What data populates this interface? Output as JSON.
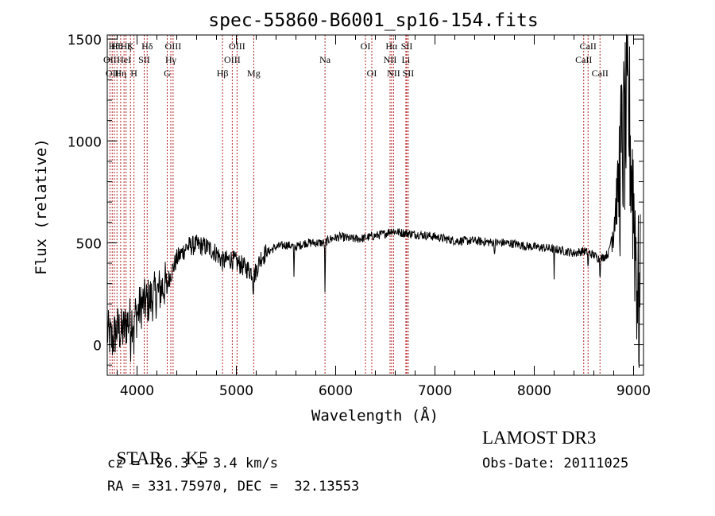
{
  "chart_data": {
    "type": "line",
    "title": "spec-55860-B6001_sp16-154.fits",
    "xlabel": "Wavelength (Å)",
    "ylabel": "Flux (relative)",
    "xlim": [
      3700,
      9100
    ],
    "ylim": [
      -150,
      1520
    ],
    "x_ticks": [
      4000,
      5000,
      6000,
      7000,
      8000,
      9000
    ],
    "y_ticks": [
      0,
      500,
      1000,
      1500
    ],
    "grid": false,
    "legend": "none",
    "line_color": "#000000",
    "marker_color": "#b22222",
    "spectrum_keypoints": {
      "x": [
        3700,
        3750,
        3800,
        3850,
        3900,
        3950,
        4000,
        4050,
        4100,
        4150,
        4200,
        4250,
        4300,
        4400,
        4500,
        4600,
        4700,
        4800,
        4860,
        4950,
        5050,
        5150,
        5180,
        5250,
        5300,
        5400,
        5500,
        5600,
        5700,
        5800,
        5890,
        5950,
        6050,
        6150,
        6250,
        6350,
        6450,
        6500,
        6563,
        6650,
        6750,
        6850,
        7000,
        7100,
        7200,
        7300,
        7400,
        7500,
        7600,
        7700,
        7800,
        7900,
        8000,
        8100,
        8200,
        8300,
        8400,
        8500,
        8600,
        8660,
        8700,
        8750,
        8800,
        8850,
        8900,
        8950,
        9000,
        9050
      ],
      "y": [
        60,
        20,
        80,
        60,
        110,
        130,
        150,
        200,
        210,
        230,
        250,
        280,
        300,
        420,
        480,
        490,
        480,
        450,
        410,
        420,
        390,
        360,
        340,
        430,
        450,
        480,
        490,
        480,
        500,
        500,
        500,
        520,
        530,
        520,
        520,
        530,
        540,
        545,
        560,
        550,
        545,
        540,
        530,
        520,
        510,
        510,
        510,
        505,
        500,
        500,
        495,
        485,
        480,
        475,
        470,
        460,
        450,
        460,
        440,
        420,
        430,
        450,
        600,
        800,
        1000,
        1150,
        700,
        200
      ]
    },
    "line_markers": [
      {
        "wl": 3727,
        "name": "OII",
        "row": 1
      },
      {
        "wl": 3750,
        "name": "OII",
        "row": 2
      },
      {
        "wl": 3771,
        "name": "Hθ",
        "row": 0
      },
      {
        "wl": 3798,
        "name": "Hθ",
        "row": 0
      },
      {
        "wl": 3835,
        "name": "Hη",
        "row": 2
      },
      {
        "wl": 3869,
        "name": "HeI",
        "row": 1
      },
      {
        "wl": 3889,
        "name": "Hζ",
        "row": 0
      },
      {
        "wl": 3934,
        "name": "K",
        "row": 0
      },
      {
        "wl": 3969,
        "name": "H",
        "row": 2
      },
      {
        "wl": 4072,
        "name": "SII",
        "row": 1
      },
      {
        "wl": 4102,
        "name": "Hδ",
        "row": 0
      },
      {
        "wl": 4304,
        "name": "G",
        "row": 2
      },
      {
        "wl": 4340,
        "name": "Hγ",
        "row": 1
      },
      {
        "wl": 4363,
        "name": "OIII",
        "row": 0
      },
      {
        "wl": 4861,
        "name": "Hβ",
        "row": 2
      },
      {
        "wl": 4959,
        "name": "OIII",
        "row": 1
      },
      {
        "wl": 5007,
        "name": "OIII",
        "row": 0
      },
      {
        "wl": 5175,
        "name": "Mg",
        "row": 2
      },
      {
        "wl": 5893,
        "name": "Na",
        "row": 1
      },
      {
        "wl": 6300,
        "name": "OI",
        "row": 0
      },
      {
        "wl": 6364,
        "name": "OI",
        "row": 2
      },
      {
        "wl": 6548,
        "name": "NII",
        "row": 1
      },
      {
        "wl": 6563,
        "name": "Hα",
        "row": 0
      },
      {
        "wl": 6583,
        "name": "NII",
        "row": 2
      },
      {
        "wl": 6707,
        "name": "Li",
        "row": 1
      },
      {
        "wl": 6716,
        "name": "SII",
        "row": 0
      },
      {
        "wl": 6731,
        "name": "SII",
        "row": 2
      },
      {
        "wl": 8498,
        "name": "CaII",
        "row": 1
      },
      {
        "wl": 8542,
        "name": "CaII",
        "row": 0
      },
      {
        "wl": 8662,
        "name": "CaII",
        "row": 2
      }
    ]
  },
  "info": {
    "class_text": "STAR",
    "subclass_text": "K5",
    "survey_text": "LAMOST DR3",
    "cz_text": "cz = -26.3 ± 3.4 km/s",
    "obsdate_text": "Obs-Date: 20111025",
    "radec_text": "RA = 331.75970, DEC =  32.13553"
  }
}
